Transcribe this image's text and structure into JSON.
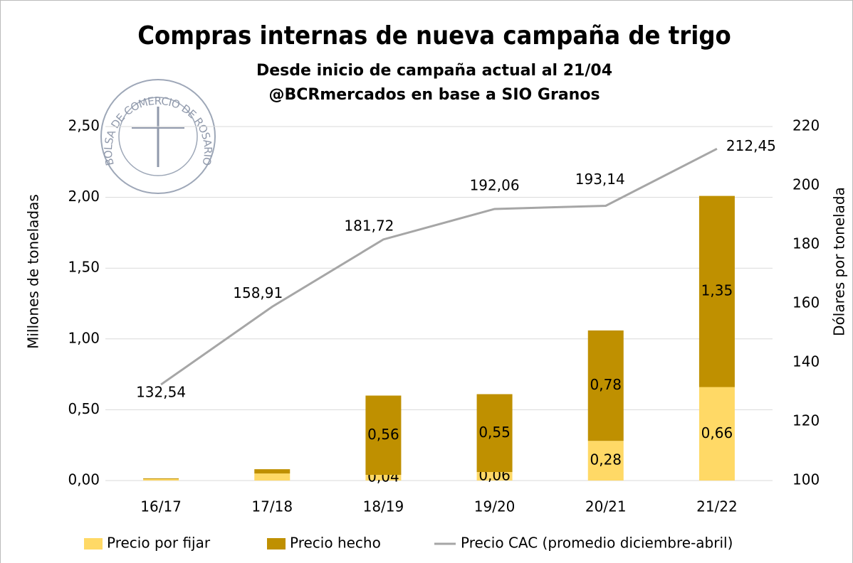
{
  "chart_data": {
    "type": "bar-line",
    "title": "Compras internas de nueva campaña de trigo",
    "subtitle": [
      "Desde inicio de campaña actual al 21/04",
      "@BCRmercados en base a SIO Granos"
    ],
    "logo": "BOLSA DE COMERCIO DE ROSARIO",
    "ylabel": "Millones de toneladas",
    "y2label": "Dólares por tonelada",
    "categories": [
      "16/17",
      "17/18",
      "18/19",
      "19/20",
      "20/21",
      "21/22"
    ],
    "series": [
      {
        "name": "Precio por fijar",
        "color": "#FFD966",
        "type": "bar",
        "values": [
          0.01,
          0.05,
          0.04,
          0.06,
          0.28,
          0.66
        ],
        "value_labels": [
          null,
          null,
          "0,04",
          "0,06",
          "0,28",
          "0,66"
        ]
      },
      {
        "name": "Precio hecho",
        "color": "#BF9000",
        "type": "bar",
        "values": [
          0.005,
          0.03,
          0.56,
          0.55,
          0.78,
          1.35
        ],
        "value_labels": [
          null,
          null,
          "0,56",
          "0,55",
          "0,78",
          "1,35"
        ]
      },
      {
        "name": "Precio CAC (promedio diciembre-abril)",
        "color": "#A6A6A6",
        "type": "line",
        "axis": "y2",
        "values": [
          132.54,
          158.91,
          181.72,
          192.06,
          193.14,
          212.45
        ],
        "value_labels": [
          "132,54",
          "158,91",
          "181,72",
          "192,06",
          "193,14",
          "212,45"
        ]
      }
    ],
    "ylim": [
      0,
      2.5
    ],
    "yticks": [
      {
        "value": 0,
        "label": "0,00"
      },
      {
        "value": 0.5,
        "label": "0,50"
      },
      {
        "value": 1,
        "label": "1,00"
      },
      {
        "value": 1.5,
        "label": "1,50"
      },
      {
        "value": 2,
        "label": "2,00"
      },
      {
        "value": 2.5,
        "label": "2,50"
      }
    ],
    "y2lim": [
      100,
      220
    ],
    "y2ticks": [
      100,
      120,
      140,
      160,
      180,
      200,
      220
    ],
    "grid": true,
    "legend": "bottom"
  }
}
